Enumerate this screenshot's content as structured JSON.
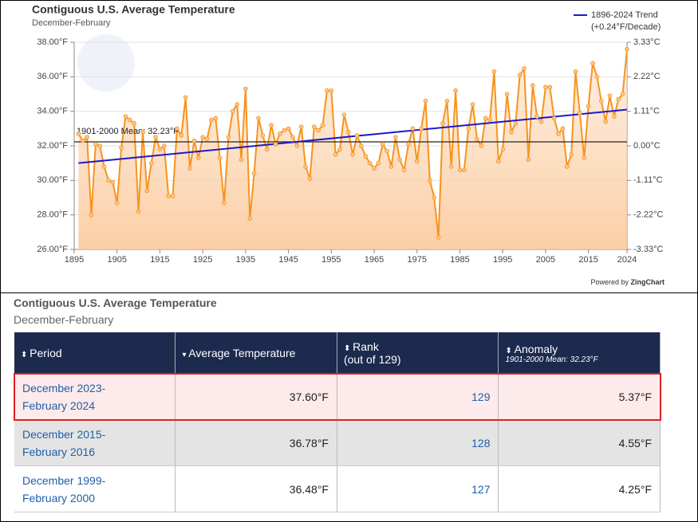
{
  "chart_data": {
    "type": "line",
    "title": "Contiguous U.S. Average Temperature",
    "subtitle": "December-February",
    "xlim": [
      1895,
      2024
    ],
    "xticks": [
      1895,
      1905,
      1915,
      1925,
      1935,
      1945,
      1955,
      1965,
      1975,
      1985,
      1995,
      2005,
      2015,
      2024
    ],
    "ylim": [
      26,
      38
    ],
    "yticks": [
      {
        "value": 26,
        "label": "26.00°F"
      },
      {
        "value": 28,
        "label": "28.00°F"
      },
      {
        "value": 30,
        "label": "30.00°F"
      },
      {
        "value": 32,
        "label": "32.00°F"
      },
      {
        "value": 34,
        "label": "34.00°F"
      },
      {
        "value": 36,
        "label": "36.00°F"
      },
      {
        "value": 38,
        "label": "38.00°F"
      }
    ],
    "y2lim": [
      -3.33,
      3.33
    ],
    "y2ticks": [
      {
        "value": -3.33,
        "label": "-3.33°C"
      },
      {
        "value": -2.22,
        "label": "-2.22°C"
      },
      {
        "value": -1.11,
        "label": "-1.11°C"
      },
      {
        "value": 0,
        "label": "0.00°C"
      },
      {
        "value": 1.11,
        "label": "1.11°C"
      },
      {
        "value": 2.22,
        "label": "2.22°C"
      },
      {
        "value": 3.33,
        "label": "3.33°C"
      }
    ],
    "grid": true,
    "series": [
      {
        "color": "#f7941d",
        "x": [
          1896,
          1897,
          1898,
          1899,
          1900,
          1901,
          1902,
          1903,
          1904,
          1905,
          1906,
          1907,
          1908,
          1909,
          1910,
          1911,
          1912,
          1913,
          1914,
          1915,
          1916,
          1917,
          1918,
          1919,
          1920,
          1921,
          1922,
          1923,
          1924,
          1925,
          1926,
          1927,
          1928,
          1929,
          1930,
          1931,
          1932,
          1933,
          1934,
          1935,
          1936,
          1937,
          1938,
          1939,
          1940,
          1941,
          1942,
          1943,
          1944,
          1945,
          1946,
          1947,
          1948,
          1949,
          1950,
          1951,
          1952,
          1953,
          1954,
          1955,
          1956,
          1957,
          1958,
          1959,
          1960,
          1961,
          1962,
          1963,
          1964,
          1965,
          1966,
          1967,
          1968,
          1969,
          1970,
          1971,
          1972,
          1973,
          1974,
          1975,
          1976,
          1977,
          1978,
          1979,
          1980,
          1981,
          1982,
          1983,
          1984,
          1985,
          1986,
          1987,
          1988,
          1989,
          1990,
          1991,
          1992,
          1993,
          1994,
          1995,
          1996,
          1997,
          1998,
          1999,
          2000,
          2001,
          2002,
          2003,
          2004,
          2005,
          2006,
          2007,
          2008,
          2009,
          2010,
          2011,
          2012,
          2013,
          2014,
          2015,
          2016,
          2017,
          2018,
          2019,
          2020,
          2021,
          2022,
          2023,
          2024
        ],
        "values": [
          32.7,
          32.3,
          32.5,
          28.0,
          32.1,
          32.0,
          30.8,
          30.0,
          29.9,
          28.7,
          31.9,
          33.7,
          33.5,
          33.3,
          28.2,
          32.8,
          29.4,
          31.0,
          32.5,
          31.8,
          32.0,
          29.1,
          29.1,
          33.0,
          32.6,
          34.8,
          30.7,
          32.3,
          31.3,
          32.5,
          32.4,
          33.5,
          33.6,
          31.3,
          28.7,
          32.5,
          34.0,
          34.4,
          31.2,
          35.3,
          27.8,
          30.4,
          33.6,
          32.6,
          31.8,
          33.2,
          32.1,
          32.7,
          32.9,
          33.0,
          32.5,
          32.0,
          33.1,
          30.8,
          30.1,
          33.1,
          32.9,
          33.2,
          35.2,
          35.2,
          31.5,
          31.8,
          33.8,
          32.8,
          31.5,
          32.6,
          32.0,
          31.4,
          31.0,
          30.7,
          31.0,
          32.1,
          31.7,
          30.8,
          32.5,
          31.2,
          30.6,
          32.1,
          33.0,
          31.1,
          33.0,
          34.6,
          30.0,
          29.0,
          26.7,
          33.3,
          34.6,
          30.8,
          35.2,
          30.6,
          30.6,
          33.0,
          34.4,
          32.4,
          32.0,
          33.6,
          33.5,
          36.3,
          31.1,
          31.8,
          35.0,
          32.8,
          33.3,
          36.1,
          36.48,
          31.2,
          35.5,
          33.7,
          33.4,
          35.4,
          35.4,
          33.6,
          32.7,
          33.0,
          30.8,
          31.5,
          36.3,
          33.9,
          31.3,
          34.3,
          36.78,
          36.0,
          34.6,
          33.4,
          34.9,
          33.7,
          34.7,
          35.0,
          37.6
        ]
      }
    ],
    "trend": {
      "name": "1896-2024 Trend",
      "note": "(+0.24°F/Decade)",
      "color": "#1a1acc",
      "x": [
        1896,
        2024
      ],
      "values": [
        31.0,
        34.1
      ]
    },
    "mean": {
      "label": "1901-2000 Mean: 32.23°F",
      "value": 32.23
    },
    "legend": "top-right",
    "credit": {
      "prefix": "Powered by",
      "brand": "ZingChart"
    }
  },
  "table": {
    "title": "Contiguous U.S. Average Temperature",
    "subtitle": "December-February",
    "columns": [
      {
        "label": "Period"
      },
      {
        "label": "Average Temperature"
      },
      {
        "label": "Rank",
        "sub": "(out of 129)"
      },
      {
        "label": "Anomaly",
        "sub": "1901-2000 Mean: 32.23°F"
      }
    ],
    "rows": [
      {
        "period": [
          "December 2023-",
          "February 2024"
        ],
        "temp": "37.60°F",
        "rank": 129,
        "anomaly": "5.37°F"
      },
      {
        "period": [
          "December 2015-",
          "February 2016"
        ],
        "temp": "36.78°F",
        "rank": 128,
        "anomaly": "4.55°F"
      },
      {
        "period": [
          "December 1999-",
          "February 2000"
        ],
        "temp": "36.48°F",
        "rank": 127,
        "anomaly": "4.25°F"
      }
    ]
  }
}
